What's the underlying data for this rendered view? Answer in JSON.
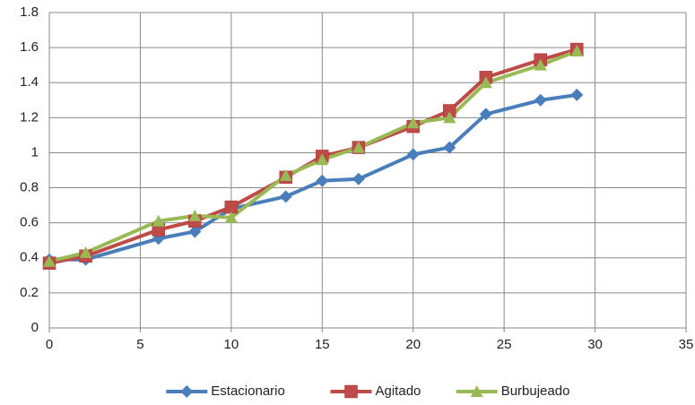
{
  "chart_data": {
    "type": "line",
    "x": [
      0,
      2,
      6,
      8,
      10,
      13,
      15,
      17,
      20,
      22,
      24,
      27,
      29
    ],
    "series": [
      {
        "name": "Estacionario",
        "color": "#4a7ebb",
        "values": [
          0.39,
          0.39,
          0.51,
          0.55,
          0.68,
          0.75,
          0.84,
          0.85,
          0.99,
          1.03,
          1.22,
          1.3,
          1.33
        ]
      },
      {
        "name": "Agitado",
        "color": "#be4b48",
        "values": [
          0.37,
          0.41,
          0.56,
          0.61,
          0.69,
          0.86,
          0.98,
          1.03,
          1.15,
          1.24,
          1.43,
          1.53,
          1.59
        ]
      },
      {
        "name": "Burbujeado",
        "color": "#98b954",
        "values": [
          0.38,
          0.43,
          0.61,
          0.64,
          0.63,
          0.87,
          0.96,
          1.03,
          1.17,
          1.2,
          1.4,
          1.5,
          1.58
        ]
      }
    ],
    "xlim": [
      0,
      35
    ],
    "xticks": [
      0,
      5,
      10,
      15,
      20,
      25,
      30,
      35
    ],
    "ylim": [
      0,
      1.8
    ],
    "yticks": [
      0,
      0.2,
      0.4,
      0.6,
      0.8,
      1,
      1.2,
      1.4,
      1.6,
      1.8
    ],
    "grid": true,
    "legend": "bottom"
  }
}
